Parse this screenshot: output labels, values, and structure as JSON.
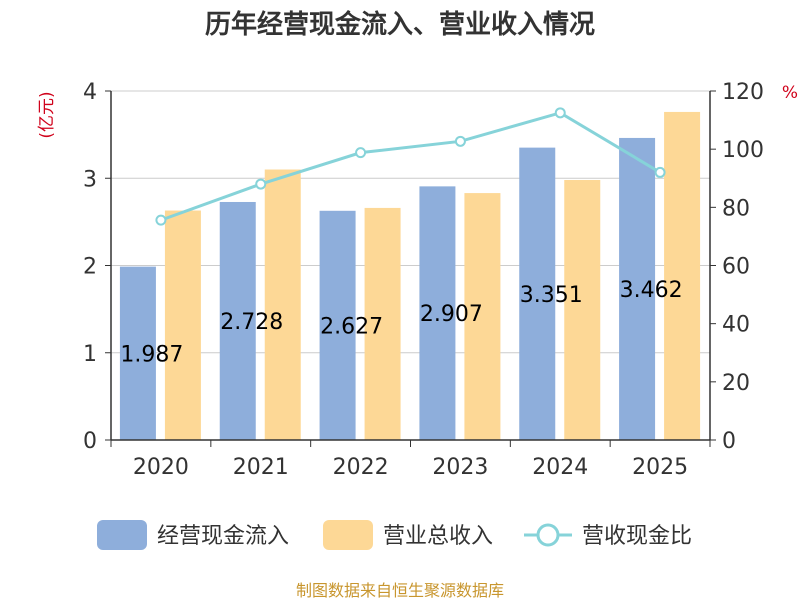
{
  "chart_data": {
    "type": "bar",
    "title": "历年经营现金流入、营业收入情况",
    "categories": [
      "2020",
      "2021",
      "2022",
      "2023",
      "2024",
      "2025"
    ],
    "series": [
      {
        "name": "经营现金流入",
        "kind": "bar",
        "axis": "left",
        "color": "#8eaedb",
        "values": [
          1.987,
          2.728,
          2.627,
          2.907,
          3.351,
          3.462
        ]
      },
      {
        "name": "营业总收入",
        "kind": "bar",
        "axis": "left",
        "color": "#fdd896",
        "values": [
          2.63,
          3.1,
          2.66,
          2.83,
          2.98,
          3.76
        ]
      },
      {
        "name": "营收现金比",
        "kind": "line",
        "axis": "right",
        "color": "#86d3d9",
        "values": [
          75.6,
          88.0,
          98.8,
          102.7,
          112.5,
          92.0
        ]
      }
    ],
    "left_axis": {
      "label": "(亿元)",
      "ylim": [
        0,
        4
      ],
      "ticks": [
        "0",
        "1",
        "2",
        "3",
        "4"
      ]
    },
    "right_axis": {
      "label": "%",
      "ylim": [
        0,
        120
      ],
      "ticks": [
        "0",
        "20",
        "40",
        "60",
        "80",
        "100",
        "120"
      ]
    },
    "data_labels": [
      "1.987",
      "2.728",
      "2.627",
      "2.907",
      "3.351",
      "3.462"
    ],
    "grid": true,
    "legend_position": "bottom"
  },
  "source_text": "制图数据来自恒生聚源数据库"
}
